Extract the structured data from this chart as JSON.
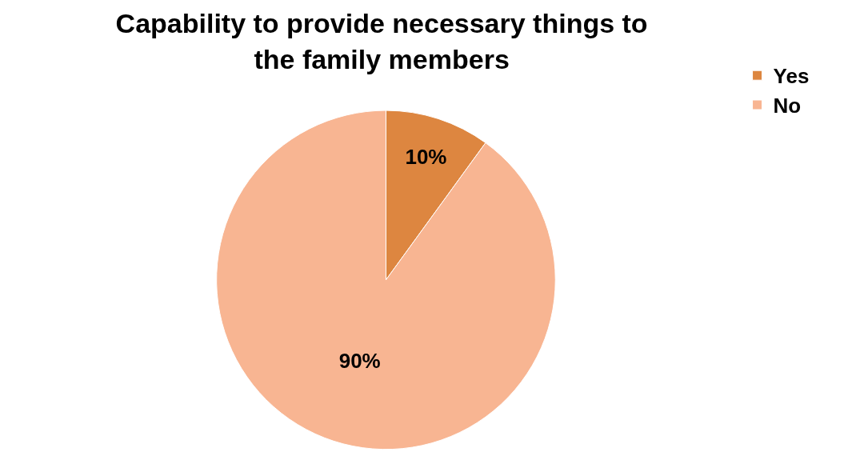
{
  "chart_data": {
    "type": "pie",
    "title": "Capability to provide necessary things to\nthe family members",
    "categories": [
      "Yes",
      "No"
    ],
    "values": [
      10,
      90
    ],
    "value_labels": [
      "10%",
      "90%"
    ],
    "colors": [
      "#dd8640",
      "#f8b592"
    ],
    "legend": "top right"
  }
}
